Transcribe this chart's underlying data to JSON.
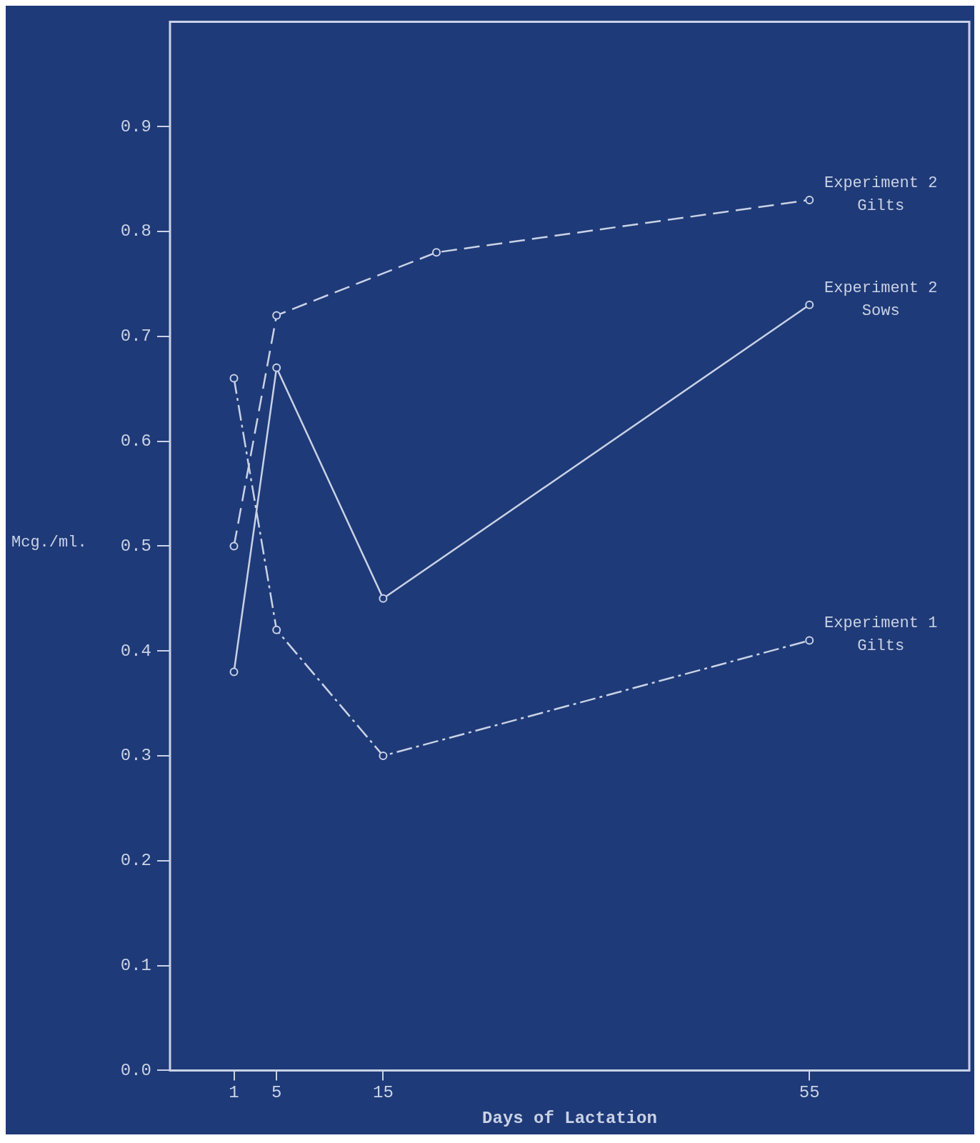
{
  "chart_data": {
    "type": "line",
    "xlabel": "Days of Lactation",
    "ylabel": "Mcg./ml.",
    "xlim": [
      -5,
      70
    ],
    "xticks": [
      1,
      5,
      15,
      55
    ],
    "ylim": [
      0,
      1
    ],
    "yticks": [
      {
        "value": 0,
        "label": "0.0"
      },
      {
        "value": 0.1,
        "label": "0.1"
      },
      {
        "value": 0.2,
        "label": "0.2"
      },
      {
        "value": 0.3,
        "label": "0.3"
      },
      {
        "value": 0.4,
        "label": "0.4"
      },
      {
        "value": 0.5,
        "label": "0.5"
      },
      {
        "value": 0.6,
        "label": "0.6"
      },
      {
        "value": 0.7,
        "label": "0.7"
      },
      {
        "value": 0.8,
        "label": "0.8"
      },
      {
        "value": 0.9,
        "label": "0.9"
      }
    ],
    "grid": false,
    "legend": false,
    "marker": "circle",
    "series": [
      {
        "name": "Experiment 2 Gilts",
        "color": "#c9d2e6",
        "line_style": "dashed",
        "x": [
          1,
          5,
          20,
          55
        ],
        "values": [
          0.5,
          0.72,
          0.78,
          0.83
        ]
      },
      {
        "name": "Experiment 2 Sows",
        "color": "#c9d2e6",
        "line_style": "solid",
        "x": [
          1,
          5,
          15,
          55
        ],
        "values": [
          0.38,
          0.67,
          0.45,
          0.73
        ]
      },
      {
        "name": "Experiment 1 Gilts",
        "color": "#c9d2e6",
        "line_style": "dotted",
        "x": [
          1,
          5,
          15,
          55
        ],
        "values": [
          0.66,
          0.42,
          0.3,
          0.41
        ]
      }
    ]
  }
}
